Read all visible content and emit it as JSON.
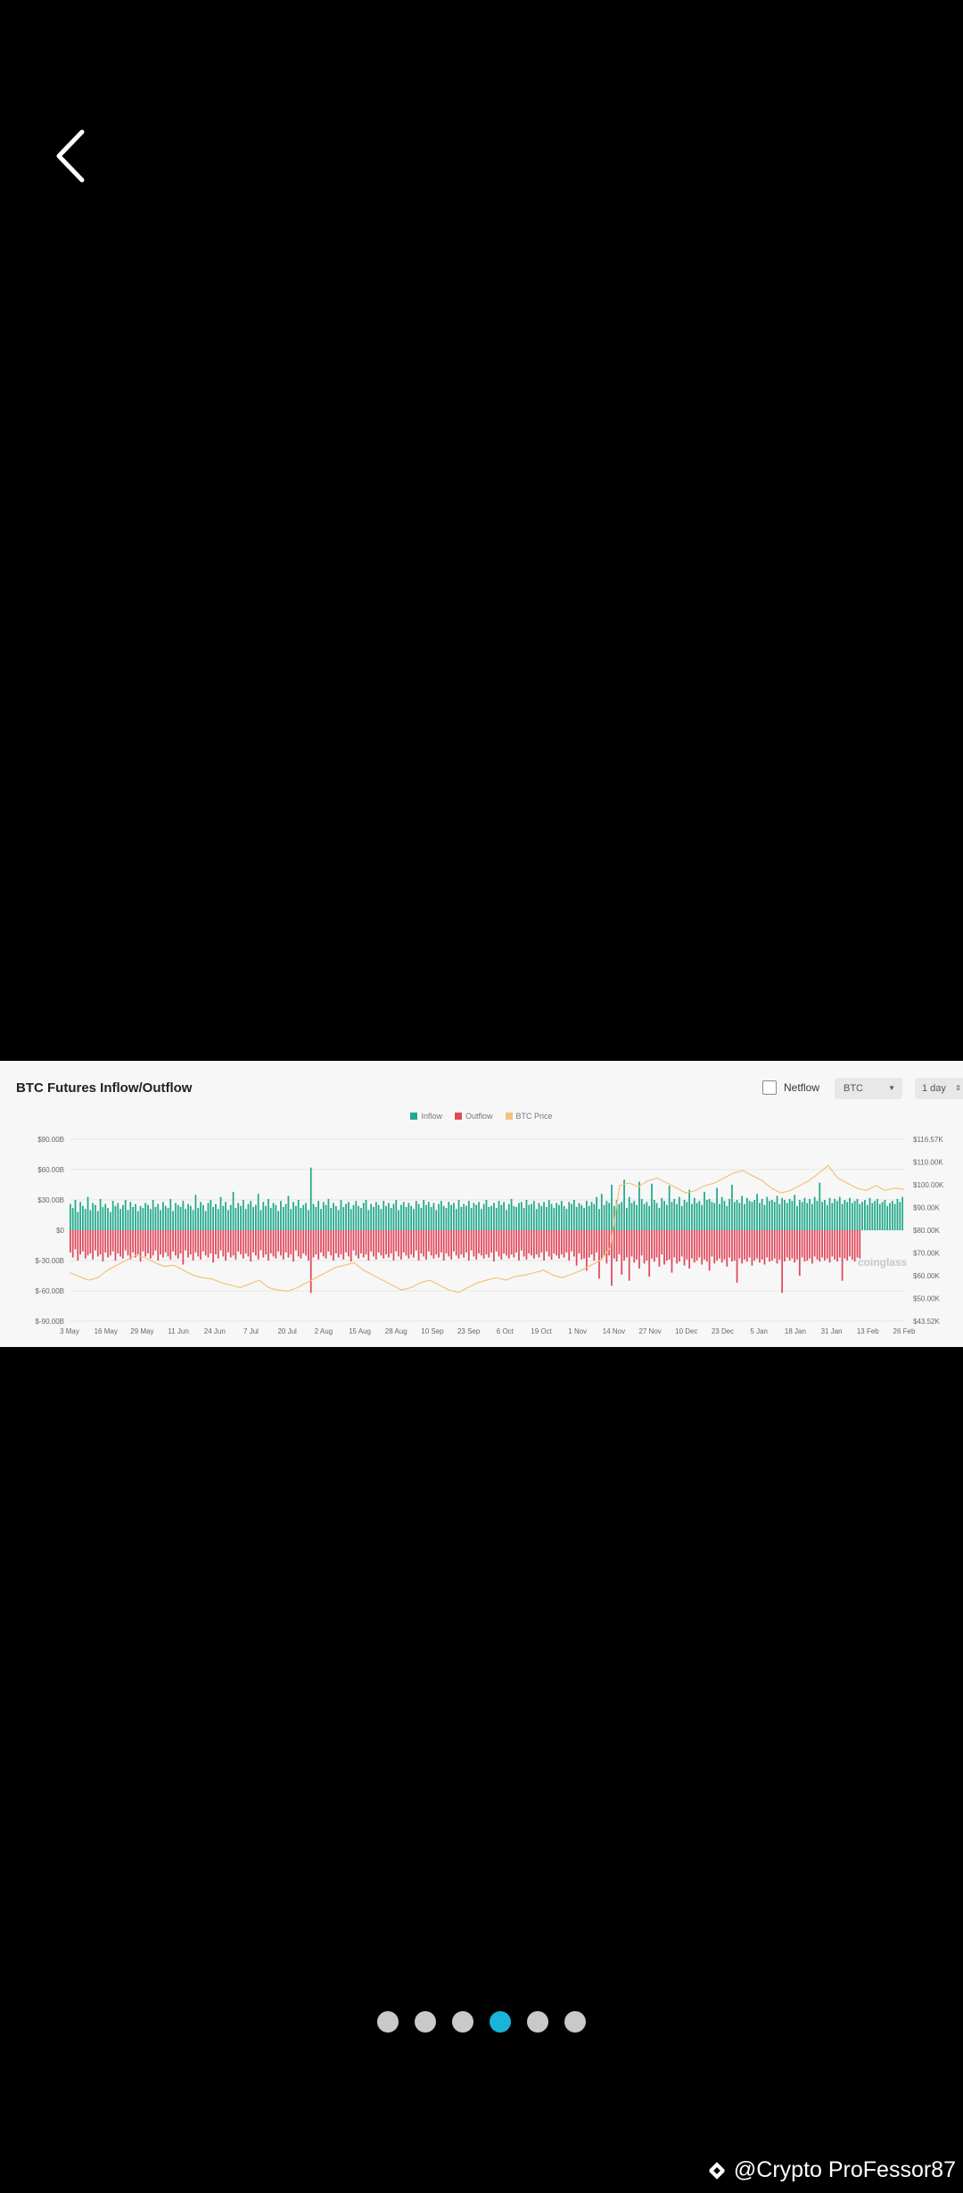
{
  "nav": {
    "back_icon": "chevron-left-icon"
  },
  "viewer": {
    "active_page": 4,
    "pages": [
      1,
      2,
      3,
      4,
      5,
      6
    ],
    "watermark": "@Crypto ProFessor87",
    "watermark_icon": "binance-logo-icon",
    "active_color": "#18b4d9",
    "inactive_color": "#c9c9c9"
  },
  "chart_header": {
    "title": "BTC Futures Inflow/Outflow",
    "netflow_label": "Netflow",
    "coin_value": "BTC",
    "interval_value": "1 day",
    "brand_watermark": "coinglass"
  },
  "chart_data": {
    "type": "bar",
    "title": "BTC Futures Inflow/Outflow",
    "legend": [
      "Inflow",
      "Outflow",
      "BTC Price"
    ],
    "legend_placement": "top-center",
    "colors": {
      "Inflow": "#1fa98a",
      "Outflow": "#e2475a",
      "BTC Price": "#f3c27a"
    },
    "x_ticks": [
      "3 May",
      "16 May",
      "29 May",
      "11 Jun",
      "24 Jun",
      "7 Jul",
      "20 Jul",
      "2 Aug",
      "15 Aug",
      "28 Aug",
      "10 Sep",
      "23 Sep",
      "6 Oct",
      "19 Oct",
      "1 Nov",
      "14 Nov",
      "27 Nov",
      "10 Dec",
      "23 Dec",
      "5 Jan",
      "18 Jan",
      "31 Jan",
      "13 Feb",
      "26 Feb"
    ],
    "y_left_ticks": [
      "$90.00B",
      "$60.00B",
      "$30.00B",
      "$0",
      "$-30.00B",
      "$-60.00B",
      "$-90.00B"
    ],
    "y_left_range": [
      -90,
      90
    ],
    "y_right_ticks": [
      "$116.57K",
      "$110.00K",
      "$100.00K",
      "$90.00K",
      "$80.00K",
      "$70.00K",
      "$60.00K",
      "$50.00K",
      "$43.52K"
    ],
    "y_right_range": [
      43.52,
      116.57
    ],
    "grid": true,
    "series": [
      {
        "name": "Inflow",
        "unit": "$B",
        "values": [
          26,
          22,
          30,
          18,
          28,
          24,
          21,
          33,
          20,
          27,
          25,
          19,
          31,
          23,
          26,
          22,
          18,
          29,
          24,
          27,
          21,
          25,
          30,
          20,
          28,
          23,
          26,
          19,
          24,
          22,
          27,
          25,
          21,
          30,
          23,
          26,
          20,
          28,
          24,
          22,
          31,
          19,
          27,
          25,
          23,
          29,
          21,
          26,
          24,
          20,
          35,
          22,
          28,
          25,
          19,
          27,
          30,
          23,
          26,
          21,
          33,
          24,
          28,
          20,
          25,
          38,
          22,
          27,
          24,
          30,
          21,
          26,
          29,
          23,
          25,
          36,
          20,
          28,
          24,
          31,
          22,
          27,
          25,
          19,
          29,
          23,
          26,
          34,
          21,
          28,
          24,
          30,
          22,
          25,
          27,
          20,
          62,
          26,
          23,
          29,
          21,
          28,
          25,
          31,
          22,
          27,
          24,
          20,
          30,
          23,
          26,
          28,
          21,
          25,
          29,
          24,
          22,
          27,
          30,
          20,
          26,
          23,
          28,
          25,
          21,
          29,
          24,
          27,
          22,
          26,
          30,
          20,
          25,
          28,
          23,
          27,
          24,
          21,
          29,
          26,
          22,
          30,
          25,
          28,
          23,
          27,
          20,
          26,
          29,
          24,
          22,
          28,
          25,
          27,
          21,
          30,
          23,
          26,
          24,
          29,
          22,
          27,
          25,
          28,
          21,
          26,
          30,
          23,
          24,
          27,
          22,
          29,
          25,
          28,
          20,
          26,
          31,
          24,
          23,
          27,
          28,
          22,
          30,
          25,
          26,
          29,
          21,
          27,
          24,
          28,
          23,
          30,
          26,
          22,
          27,
          25,
          29,
          24,
          21,
          28,
          26,
          30,
          23,
          27,
          25,
          22,
          29,
          24,
          28,
          26,
          33,
          21,
          36,
          25,
          29,
          27,
          45,
          24,
          30,
          26,
          28,
          50,
          22,
          33,
          27,
          29,
          25,
          48,
          31,
          26,
          28,
          24,
          46,
          30,
          27,
          22,
          32,
          29,
          25,
          44,
          28,
          31,
          26,
          33,
          24,
          30,
          28,
          40,
          26,
          32,
          27,
          29,
          25,
          38,
          30,
          31,
          28,
          27,
          42,
          26,
          33,
          29,
          24,
          31,
          45,
          28,
          30,
          27,
          34,
          26,
          32,
          29,
          28,
          30,
          36,
          27,
          31,
          25,
          33,
          29,
          30,
          28,
          34,
          26,
          32,
          30,
          27,
          31,
          29,
          35,
          24,
          30,
          28,
          32,
          27,
          31,
          26,
          33,
          29,
          47,
          28,
          30,
          25,
          32,
          27,
          31,
          29,
          33,
          26,
          30,
          28,
          32,
          27,
          29,
          31,
          26,
          28,
          30,
          25,
          32,
          27,
          29,
          31,
          26,
          28,
          30,
          24,
          27,
          29,
          26,
          31,
          28,
          33
        ]
      },
      {
        "name": "Outflow",
        "unit": "$B",
        "values": [
          -22,
          -27,
          -19,
          -30,
          -24,
          -21,
          -28,
          -25,
          -23,
          -29,
          -20,
          -26,
          -24,
          -31,
          -22,
          -27,
          -25,
          -21,
          -30,
          -23,
          -26,
          -28,
          -20,
          -25,
          -29,
          -22,
          -27,
          -24,
          -31,
          -21,
          -26,
          -23,
          -28,
          -25,
          -20,
          -30,
          -24,
          -27,
          -22,
          -26,
          -29,
          -21,
          -25,
          -28,
          -23,
          -34,
          -20,
          -27,
          -24,
          -30,
          -22,
          -26,
          -29,
          -21,
          -25,
          -27,
          -23,
          -32,
          -24,
          -28,
          -20,
          -26,
          -30,
          -22,
          -27,
          -25,
          -29,
          -21,
          -24,
          -28,
          -23,
          -26,
          -31,
          -22,
          -25,
          -29,
          -20,
          -27,
          -24,
          -30,
          -23,
          -26,
          -28,
          -21,
          -25,
          -29,
          -22,
          -27,
          -24,
          -31,
          -20,
          -26,
          -28,
          -23,
          -25,
          -30,
          -62,
          -27,
          -24,
          -29,
          -22,
          -26,
          -28,
          -21,
          -25,
          -30,
          -23,
          -27,
          -24,
          -29,
          -22,
          -26,
          -31,
          -20,
          -25,
          -28,
          -23,
          -27,
          -24,
          -30,
          -21,
          -26,
          -29,
          -22,
          -25,
          -28,
          -24,
          -27,
          -23,
          -30,
          -21,
          -26,
          -29,
          -22,
          -25,
          -28,
          -24,
          -27,
          -20,
          -30,
          -23,
          -26,
          -29,
          -21,
          -25,
          -28,
          -24,
          -27,
          -22,
          -30,
          -23,
          -26,
          -29,
          -21,
          -25,
          -28,
          -24,
          -27,
          -22,
          -30,
          -20,
          -26,
          -29,
          -23,
          -25,
          -28,
          -24,
          -27,
          -22,
          -31,
          -21,
          -26,
          -29,
          -23,
          -25,
          -28,
          -24,
          -27,
          -22,
          -30,
          -20,
          -26,
          -29,
          -23,
          -25,
          -28,
          -24,
          -27,
          -22,
          -30,
          -21,
          -26,
          -29,
          -23,
          -25,
          -28,
          -24,
          -27,
          -22,
          -30,
          -21,
          -26,
          -35,
          -23,
          -29,
          -28,
          -40,
          -27,
          -24,
          -30,
          -22,
          -48,
          -29,
          -26,
          -33,
          -25,
          -55,
          -28,
          -31,
          -24,
          -44,
          -30,
          -27,
          -50,
          -26,
          -32,
          -29,
          -38,
          -25,
          -33,
          -30,
          -46,
          -28,
          -31,
          -27,
          -36,
          -24,
          -34,
          -30,
          -29,
          -42,
          -27,
          -33,
          -31,
          -26,
          -35,
          -29,
          -38,
          -28,
          -32,
          -30,
          -27,
          -34,
          -29,
          -31,
          -40,
          -26,
          -33,
          -30,
          -28,
          -32,
          -29,
          -36,
          -27,
          -31,
          -30,
          -52,
          -28,
          -33,
          -29,
          -31,
          -27,
          -35,
          -30,
          -28,
          -32,
          -29,
          -34,
          -27,
          -31,
          -30,
          -28,
          -33,
          -29,
          -62,
          -31,
          -27,
          -30,
          -28,
          -32,
          -29,
          -45,
          -27,
          -31,
          -30,
          -28,
          -33,
          -26,
          -29,
          -31,
          -27,
          -30,
          -28,
          -32,
          -26,
          -29,
          -31,
          -27,
          -50,
          -28,
          -30,
          -26,
          -29,
          -31,
          -27,
          -28
        ]
      },
      {
        "name": "BTC Price",
        "unit": "$K",
        "values": [
          63,
          61.5,
          60,
          61,
          64,
          66,
          68,
          70,
          69,
          67,
          65.5,
          66,
          64,
          62,
          61,
          60.5,
          59,
          58,
          57,
          58.5,
          60,
          57,
          56,
          55.5,
          57,
          59,
          61,
          63,
          65,
          66,
          67,
          64,
          62,
          60,
          58,
          56,
          57,
          59,
          60,
          58,
          56,
          55,
          57,
          59,
          60,
          61,
          60,
          61.5,
          62,
          63,
          64,
          62,
          61,
          62.5,
          64,
          66,
          68,
          73,
          98,
          99,
          97.5,
          100,
          101,
          99,
          97,
          95,
          96,
          98,
          99,
          101,
          103,
          104,
          102,
          100,
          97,
          95,
          96,
          98,
          100,
          103,
          106,
          101,
          99,
          97,
          96,
          98,
          96,
          97,
          96.5
        ]
      }
    ]
  }
}
